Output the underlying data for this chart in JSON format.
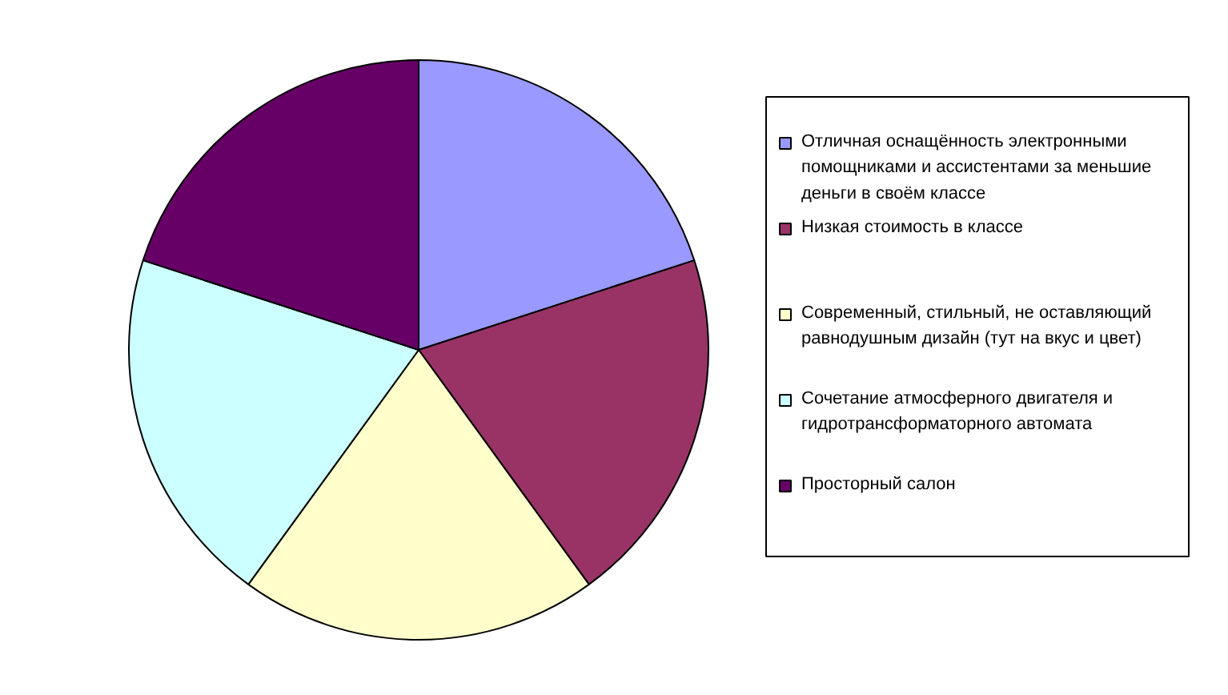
{
  "chart_data": {
    "type": "pie",
    "categories": [
      "Отличная оснащённость электронными помощниками и ассистентами за меньшие деньги в своём классе",
      "Низкая стоимость в классе",
      "Современный, стильный, не оставляющий равнодушным дизайн (тут на вкус и цвет)",
      "Сочетание атмосферного двигателя и гидротрансформаторного автомата",
      "Просторный салон"
    ],
    "values": [
      20,
      20,
      20,
      20,
      20
    ],
    "colors": [
      "#9999ff",
      "#993366",
      "#ffffcc",
      "#ccffff",
      "#660066"
    ],
    "legend": "right"
  }
}
